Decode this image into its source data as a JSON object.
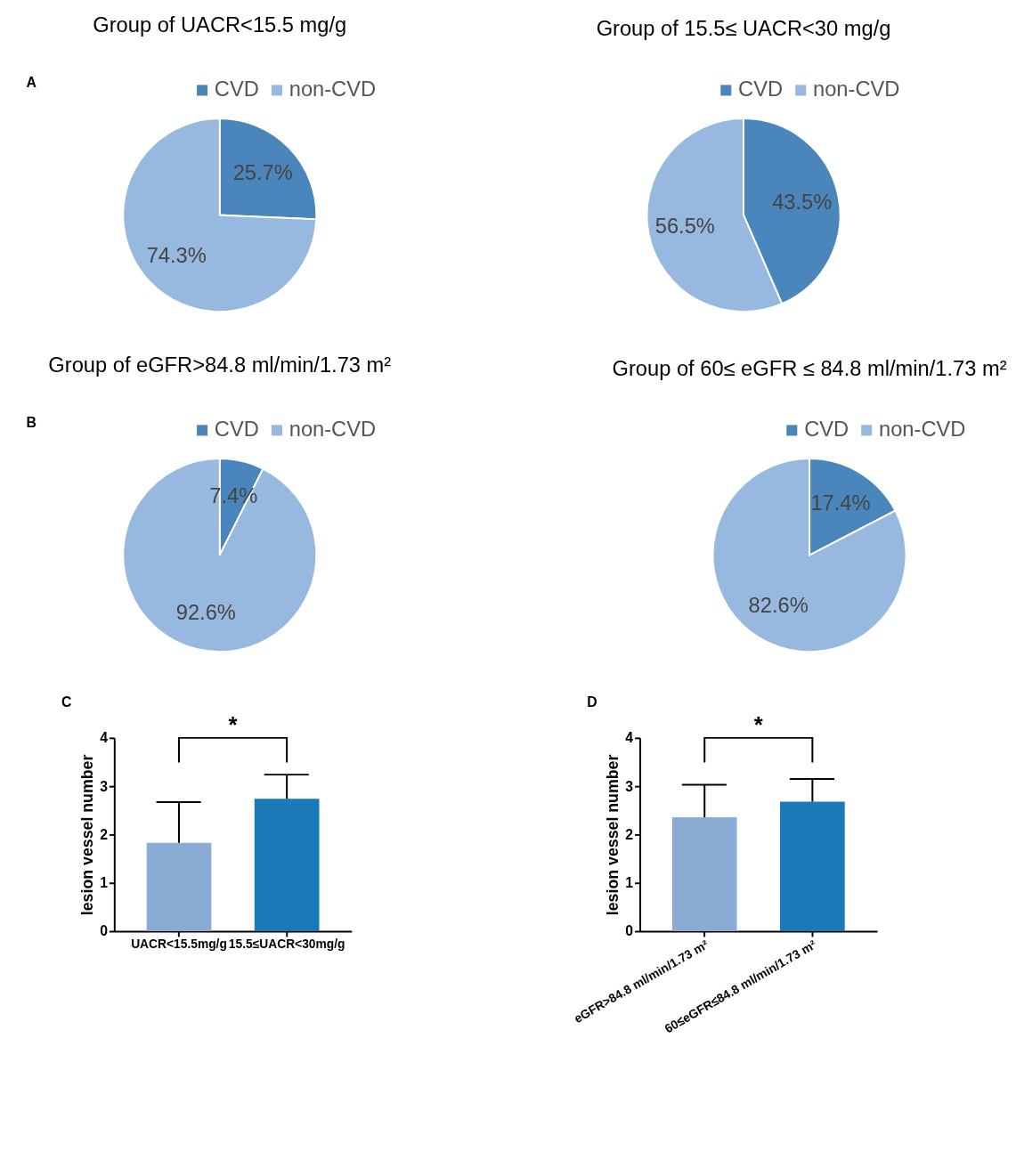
{
  "chart_data": [
    {
      "type": "pie",
      "title": "Group of UACR<15.5 mg/g",
      "annotations": [
        "A"
      ],
      "categories": [
        "CVD",
        "non-CVD"
      ],
      "values": [
        25.7,
        74.3
      ],
      "colors": [
        "#4a86bb",
        "#97b9df"
      ],
      "value_labels": [
        "25.7%",
        "74.3%"
      ],
      "legend": "top right"
    },
    {
      "type": "pie",
      "title": "Group of 15.5≤ UACR<30 mg/g",
      "categories": [
        "CVD",
        "non-CVD"
      ],
      "values": [
        43.5,
        56.5
      ],
      "colors": [
        "#4a86bb",
        "#97b9df"
      ],
      "value_labels": [
        "43.5%",
        "56.5%"
      ],
      "legend": "top right"
    },
    {
      "type": "pie",
      "title": "Group of eGFR>84.8 ml/min/1.73 m²",
      "annotations": [
        "B"
      ],
      "categories": [
        "CVD",
        "non-CVD"
      ],
      "values": [
        7.4,
        92.6
      ],
      "colors": [
        "#4a86bb",
        "#97b9df"
      ],
      "value_labels": [
        "7.4%",
        "92.6%"
      ],
      "legend": "top right"
    },
    {
      "type": "pie",
      "title": "Group of 60≤ eGFR ≤ 84.8 ml/min/1.73 m²",
      "categories": [
        "CVD",
        "non-CVD"
      ],
      "values": [
        17.4,
        82.6
      ],
      "colors": [
        "#4a86bb",
        "#97b9df"
      ],
      "value_labels": [
        "17.4%",
        "82.6%"
      ],
      "legend": "top right"
    },
    {
      "type": "bar",
      "annotations": [
        "C",
        "*"
      ],
      "categories": [
        "UACR<15.5mg/g",
        "15.5≤UACR<30mg/g"
      ],
      "values": [
        1.83,
        2.74
      ],
      "colors": [
        "#8aabd3",
        "#1a7ab8"
      ],
      "errors": [
        [
          1.83,
          2.67
        ],
        [
          2.74,
          3.24
        ]
      ],
      "ylabel": "lesion vessel number",
      "ylim": [
        0,
        4
      ],
      "yticks": [
        0,
        1,
        2,
        3,
        4
      ]
    },
    {
      "type": "bar",
      "annotations": [
        "D",
        "*"
      ],
      "categories": [
        "eGFR>84.8 ml/min/1.73 m²",
        "60≤eGFR≤84.8 ml/min/1.73 m²"
      ],
      "values": [
        2.36,
        2.68
      ],
      "colors": [
        "#8aabd3",
        "#1a7ab8"
      ],
      "errors": [
        [
          2.36,
          3.03
        ],
        [
          2.68,
          3.15
        ]
      ],
      "ylabel": "lesion vessel number",
      "ylim": [
        0,
        4
      ],
      "yticks": [
        0,
        1,
        2,
        3,
        4
      ]
    }
  ]
}
